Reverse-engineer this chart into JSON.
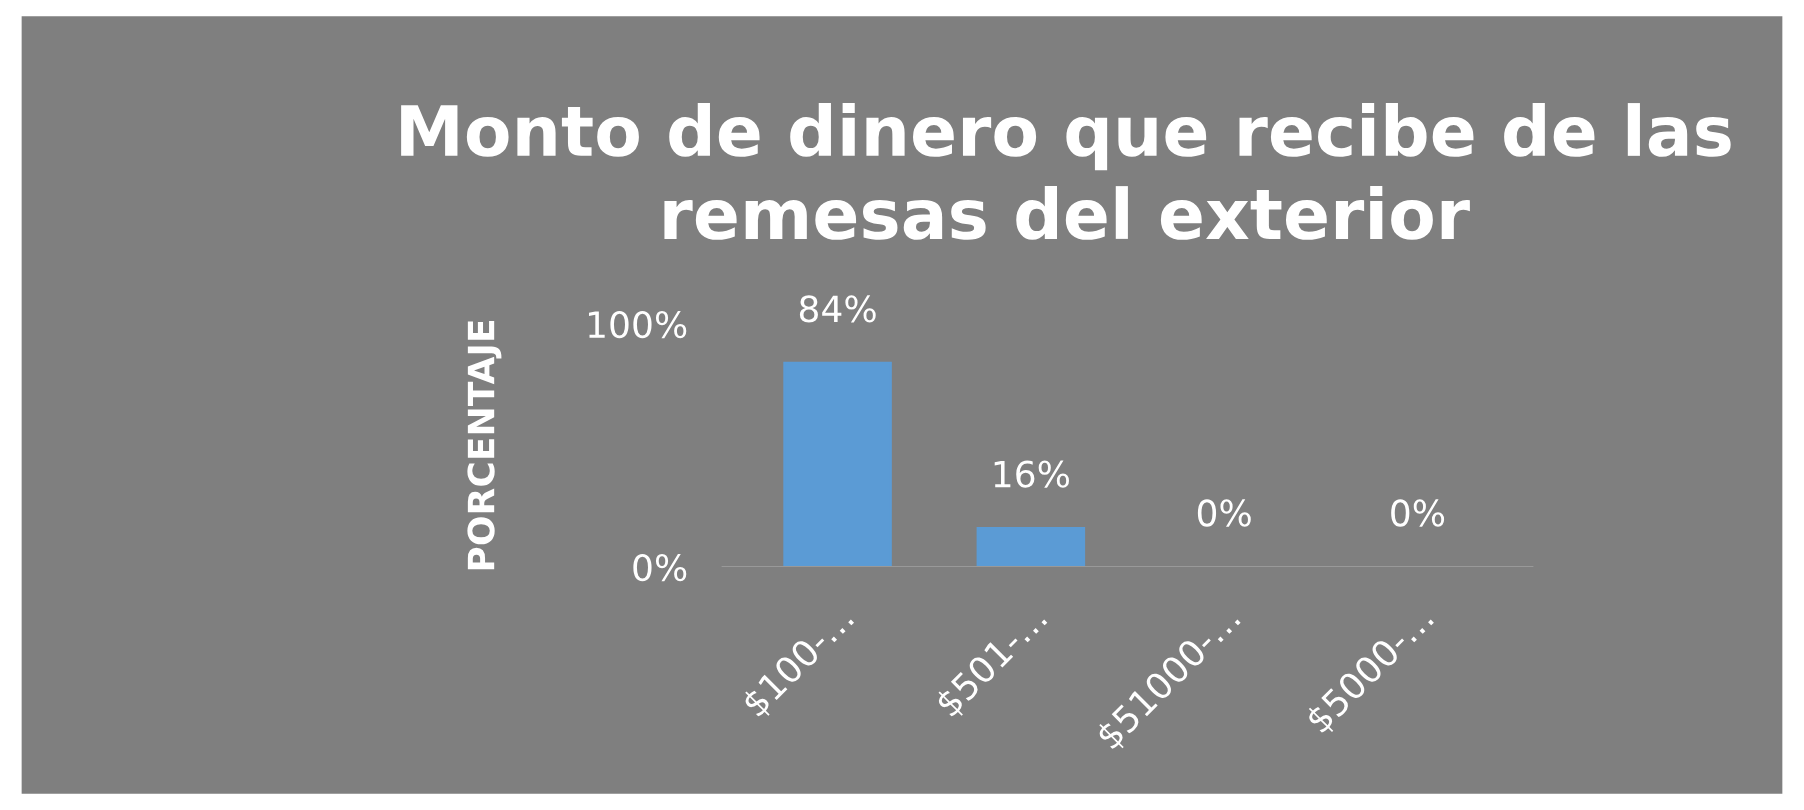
{
  "chart_data": {
    "type": "bar",
    "title": "Monto de dinero que recibe de las remesas del exterior",
    "ylabel": "PORCENTAJE",
    "categories": [
      "$100-…",
      "$501-…",
      "$51000-…",
      "$5000-…"
    ],
    "values": [
      84,
      16,
      0,
      0
    ],
    "color": "#5b9bd5",
    "value_labels": [
      "84%",
      "16%",
      "0%",
      "0%"
    ],
    "ylim": [
      0,
      100
    ],
    "yticks": [
      {
        "value": 0,
        "label": "0%"
      },
      {
        "value": 100,
        "label": "100%"
      }
    ]
  }
}
